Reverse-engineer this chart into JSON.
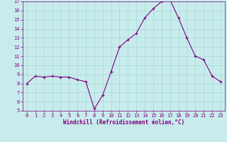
{
  "x": [
    0,
    1,
    2,
    3,
    4,
    5,
    6,
    7,
    8,
    9,
    10,
    11,
    12,
    13,
    14,
    15,
    16,
    17,
    18,
    19,
    20,
    21,
    22,
    23
  ],
  "y": [
    8.0,
    8.8,
    8.7,
    8.8,
    8.7,
    8.7,
    8.4,
    8.2,
    5.2,
    6.7,
    9.3,
    12.0,
    12.8,
    13.5,
    15.2,
    16.2,
    17.0,
    17.2,
    15.2,
    13.0,
    11.0,
    10.6,
    8.8,
    8.2
  ],
  "line_color": "#800080",
  "marker": "+",
  "marker_size": 3,
  "background_color": "#c8ecec",
  "grid_color": "#a8d8d8",
  "xlabel": "Windchill (Refroidissement éolien,°C)",
  "xlim": [
    -0.5,
    23.5
  ],
  "ylim": [
    5,
    17
  ],
  "yticks": [
    5,
    6,
    7,
    8,
    9,
    10,
    11,
    12,
    13,
    14,
    15,
    16,
    17
  ],
  "xticks": [
    0,
    1,
    2,
    3,
    4,
    5,
    6,
    7,
    8,
    9,
    10,
    11,
    12,
    13,
    14,
    15,
    16,
    17,
    18,
    19,
    20,
    21,
    22,
    23
  ],
  "line_width": 0.8,
  "marker_edge_width": 0.8,
  "xlabel_color": "#800080",
  "tick_color": "#800080",
  "spine_color": "#800080",
  "font_family": "monospace",
  "tick_fontsize": 5.0,
  "xlabel_fontsize": 5.5
}
